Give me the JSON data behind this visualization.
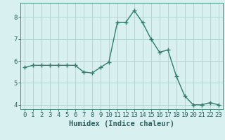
{
  "x": [
    0,
    1,
    2,
    3,
    4,
    5,
    6,
    7,
    8,
    9,
    10,
    11,
    12,
    13,
    14,
    15,
    16,
    17,
    18,
    19,
    20,
    21,
    22,
    23
  ],
  "y": [
    5.7,
    5.8,
    5.8,
    5.8,
    5.8,
    5.8,
    5.8,
    5.5,
    5.45,
    5.7,
    5.95,
    7.75,
    7.75,
    8.3,
    7.75,
    7.0,
    6.4,
    6.5,
    5.3,
    4.4,
    4.0,
    4.0,
    4.1,
    4.0
  ],
  "line_color": "#2e7d6e",
  "marker": "+",
  "marker_size": 4,
  "bg_color": "#d8f0f0",
  "grid_color": "#b0d0d0",
  "axis_color": "#2e7d6e",
  "xlabel": "Humidex (Indice chaleur)",
  "xlim": [
    -0.5,
    23.5
  ],
  "ylim": [
    3.8,
    8.65
  ],
  "yticks": [
    4,
    5,
    6,
    7,
    8
  ],
  "xticks": [
    0,
    1,
    2,
    3,
    4,
    5,
    6,
    7,
    8,
    9,
    10,
    11,
    12,
    13,
    14,
    15,
    16,
    17,
    18,
    19,
    20,
    21,
    22,
    23
  ],
  "font_color": "#2e6060",
  "tick_fontsize": 6.5,
  "xlabel_fontsize": 7.5,
  "line_width": 1.0,
  "marker_edge_width": 1.0
}
